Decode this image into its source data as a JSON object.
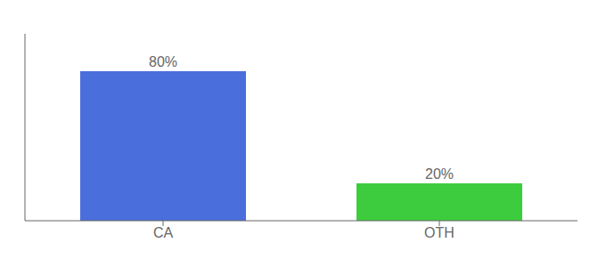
{
  "chart_data": {
    "type": "bar",
    "categories": [
      "CA",
      "OTH"
    ],
    "values": [
      80,
      20
    ],
    "value_labels": [
      "80%",
      "20%"
    ],
    "colors": [
      "#4a6fdc",
      "#3dcc3d"
    ],
    "ylim": [
      0,
      100
    ],
    "tick_labels": "x",
    "data_labels": true,
    "grid": false
  }
}
